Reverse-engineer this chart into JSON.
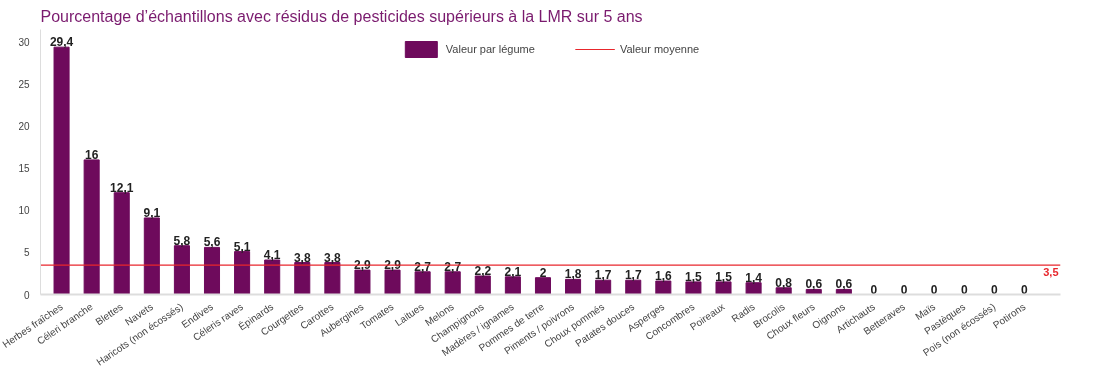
{
  "chart_data": {
    "type": "bar",
    "title": "Pourcentage d’échantillons avec résidus de pesticides supérieurs à la LMR  sur 5 ans",
    "categories": [
      "Herbes fraîches",
      "Céleri branche",
      "Blettes",
      "Navets",
      "Haricots (non écossés)",
      "Endives",
      "Céleris raves",
      "Épinards",
      "Courgettes",
      "Carottes",
      "Aubergines",
      "Tomates",
      "Laitues",
      "Melons",
      "Champignons",
      "Madères / ignames",
      "Pommes de terre",
      "Piments / poivrons",
      "Choux pommés",
      "Patates douces",
      "Asperges",
      "Concombres",
      "Poireaux",
      "Radis",
      "Brocolis",
      "Choux fleurs",
      "Oignons",
      "Artichauts",
      "Betteraves",
      "Maïs",
      "Pastèques",
      "Pois (non écossés)",
      "Potirons"
    ],
    "series": [
      {
        "name": "Valeur par légume",
        "color": "#6e0a5c",
        "values": [
          29.4,
          16,
          12.1,
          9.1,
          5.8,
          5.6,
          5.1,
          4.1,
          3.8,
          3.8,
          2.9,
          2.9,
          2.7,
          2.7,
          2.2,
          2.1,
          2,
          1.8,
          1.7,
          1.7,
          1.6,
          1.5,
          1.5,
          1.4,
          0.8,
          0.6,
          0.6,
          0,
          0,
          0,
          0,
          0,
          0
        ],
        "value_labels": [
          "29,4",
          "16",
          "12,1",
          "9,1",
          "5,8",
          "5,6",
          "5,1",
          "4,1",
          "3,8",
          "3,8",
          "2,9",
          "2,9",
          "2,7",
          "2,7",
          "2,2",
          "2,1",
          "2",
          "1,8",
          "1,7",
          "1,7",
          "1,6",
          "1,5",
          "1,5",
          "1,4",
          "0,8",
          "0,6",
          "0,6",
          "0",
          "0",
          "0",
          "0",
          "0",
          "0"
        ]
      }
    ],
    "ylim": [
      0,
      31.5
    ],
    "yticks": [
      0,
      5,
      10,
      15,
      20,
      25,
      30
    ],
    "grid": false,
    "legend": "top",
    "ref_lines": [
      {
        "axis": "y",
        "value": 3.5,
        "label": "Valeur moyenne",
        "color": "#e8262c"
      }
    ],
    "annotations": [
      {
        "text": "3,5",
        "y": 3.5
      }
    ]
  }
}
